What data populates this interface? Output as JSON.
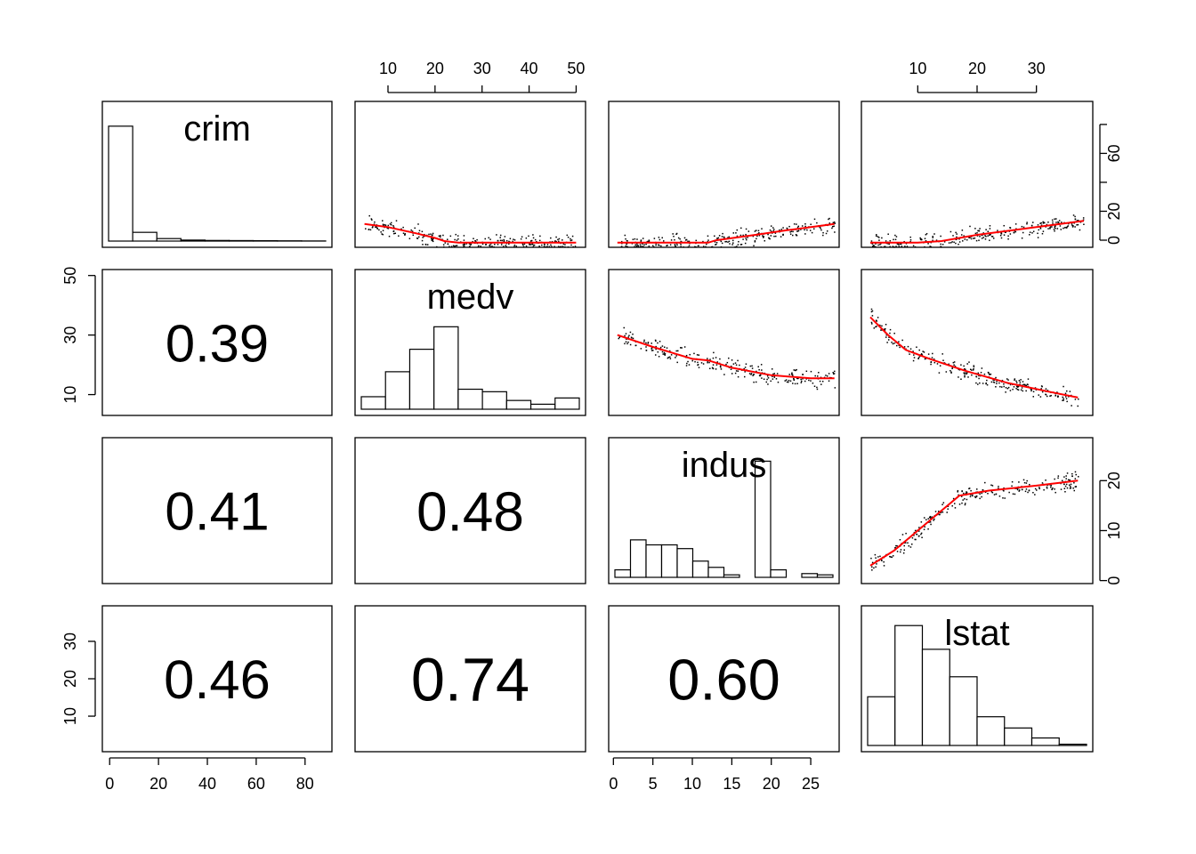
{
  "chart_data": {
    "type": "scatter-matrix",
    "variables": [
      "crim",
      "medv",
      "indus",
      "lstat"
    ],
    "axes": {
      "crim": {
        "range": [
          -3,
          91
        ],
        "ticks": [
          0,
          20,
          40,
          60,
          80
        ]
      },
      "medv": {
        "range": [
          3,
          52
        ],
        "ticks": [
          10,
          20,
          30,
          40,
          50
        ],
        "y_ticks": [
          10,
          30,
          50
        ]
      },
      "indus": {
        "range": [
          -0.6,
          28.6
        ],
        "ticks": [
          0,
          5,
          10,
          15,
          20,
          25
        ],
        "y_ticks": [
          0,
          10,
          20
        ]
      },
      "lstat": {
        "range": [
          0.5,
          39.5
        ],
        "ticks": [
          10,
          20,
          30
        ],
        "y_ticks": [
          10,
          20,
          30
        ]
      },
      "crim_y_ticks": [
        0,
        20,
        60
      ]
    },
    "correlations": [
      {
        "row": "medv",
        "col": "crim",
        "text": "0.39"
      },
      {
        "row": "indus",
        "col": "crim",
        "text": "0.41"
      },
      {
        "row": "indus",
        "col": "medv",
        "text": "0.48"
      },
      {
        "row": "lstat",
        "col": "crim",
        "text": "0.46"
      },
      {
        "row": "lstat",
        "col": "medv",
        "text": "0.74"
      },
      {
        "row": "lstat",
        "col": "indus",
        "text": "0.60"
      }
    ],
    "histograms": {
      "crim": [
        0.92,
        0.07,
        0.02,
        0.008,
        0.005,
        0.004,
        0.003,
        0.002,
        0.001
      ],
      "medv": [
        0.1,
        0.3,
        0.48,
        0.66,
        0.16,
        0.14,
        0.07,
        0.04,
        0.09
      ],
      "indus": [
        0.06,
        0.3,
        0.26,
        0.26,
        0.23,
        0.13,
        0.08,
        0.02,
        0.0,
        0.93,
        0.06,
        0.0,
        0.03,
        0.02
      ],
      "lstat": [
        0.39,
        0.96,
        0.77,
        0.55,
        0.23,
        0.14,
        0.06,
        0.01
      ]
    },
    "smooth_lines": {
      "crim_vs_medv": [
        [
          5,
          12
        ],
        [
          10,
          10
        ],
        [
          16,
          6
        ],
        [
          20,
          3
        ],
        [
          22,
          1
        ],
        [
          25,
          0
        ],
        [
          50,
          0
        ]
      ],
      "crim_vs_indus": [
        [
          0.5,
          0
        ],
        [
          12,
          0
        ],
        [
          13,
          1.5
        ],
        [
          18,
          5
        ],
        [
          22,
          8
        ],
        [
          28,
          12
        ]
      ],
      "crim_vs_lstat": [
        [
          2,
          0
        ],
        [
          10,
          0
        ],
        [
          14,
          1
        ],
        [
          20,
          5
        ],
        [
          30,
          10
        ],
        [
          38,
          14
        ]
      ],
      "medv_vs_indus": [
        [
          0.5,
          30
        ],
        [
          5,
          26
        ],
        [
          10,
          22
        ],
        [
          12,
          21.5
        ],
        [
          15,
          19
        ],
        [
          20,
          16.5
        ],
        [
          25,
          15.5
        ],
        [
          28,
          15.5
        ]
      ],
      "medv_vs_lstat": [
        [
          2,
          36
        ],
        [
          5,
          30
        ],
        [
          8,
          25
        ],
        [
          12,
          22
        ],
        [
          18,
          18
        ],
        [
          25,
          14
        ],
        [
          32,
          11
        ],
        [
          37,
          9
        ]
      ],
      "indus_vs_lstat": [
        [
          2,
          3
        ],
        [
          6,
          6
        ],
        [
          10,
          10
        ],
        [
          14,
          14
        ],
        [
          17,
          17
        ],
        [
          22,
          18
        ],
        [
          30,
          19
        ],
        [
          37,
          20
        ]
      ]
    },
    "colors": {
      "smooth_line": "#ff0000",
      "points": "#000000",
      "frame": "#000000"
    }
  }
}
